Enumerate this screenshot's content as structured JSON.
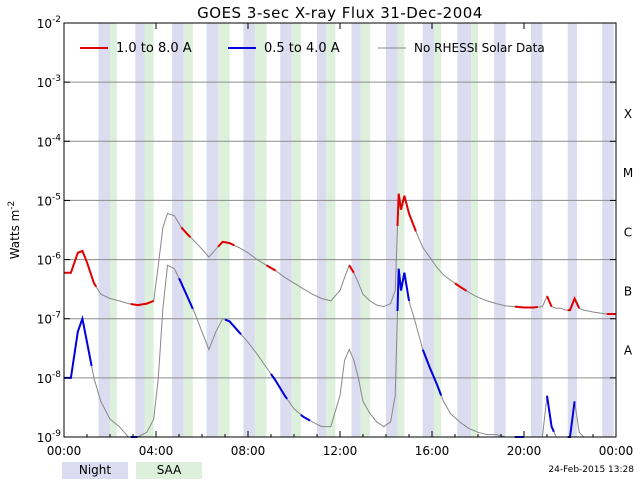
{
  "chart_data": {
    "type": "line",
    "title": "GOES 3-sec X-ray Flux    31-Dec-2004",
    "ylabel": "Watts m",
    "ylabel_sup": "-2",
    "xlabel": "",
    "x_unit": "hours UT",
    "xlim": [
      0,
      24
    ],
    "ylim": [
      1e-09,
      0.01
    ],
    "yscale": "log",
    "x_ticks": [
      "00:00",
      "04:00",
      "08:00",
      "12:00",
      "16:00",
      "20:00",
      "00:00"
    ],
    "y_ticks": [
      {
        "base": "10",
        "exp": "-9"
      },
      {
        "base": "10",
        "exp": "-8"
      },
      {
        "base": "10",
        "exp": "-7"
      },
      {
        "base": "10",
        "exp": "-6"
      },
      {
        "base": "10",
        "exp": "-5"
      },
      {
        "base": "10",
        "exp": "-4"
      },
      {
        "base": "10",
        "exp": "-3"
      },
      {
        "base": "10",
        "exp": "-2"
      }
    ],
    "flare_classes": [
      {
        "label": "A",
        "value": 1e-08
      },
      {
        "label": "B",
        "value": 1e-07
      },
      {
        "label": "C",
        "value": 1e-06
      },
      {
        "label": "M",
        "value": 1e-05
      },
      {
        "label": "X",
        "value": 0.0001
      }
    ],
    "legend": [
      {
        "name": "1.0 to 8.0 A",
        "color": "#e00000"
      },
      {
        "name": "0.5 to 4.0 A",
        "color": "#0000e0"
      },
      {
        "name": "No RHESSI Solar Data",
        "color": "#888888"
      }
    ],
    "night_intervals": [
      [
        1.5,
        2.0
      ],
      [
        3.1,
        3.5
      ],
      [
        4.7,
        5.2
      ],
      [
        6.2,
        6.7
      ],
      [
        7.8,
        8.3
      ],
      [
        9.4,
        9.9
      ],
      [
        11.0,
        11.4
      ],
      [
        12.5,
        12.9
      ],
      [
        14.0,
        14.5
      ],
      [
        15.6,
        16.1
      ],
      [
        17.1,
        17.7
      ],
      [
        18.7,
        19.2
      ],
      [
        20.3,
        20.8
      ],
      [
        21.9,
        22.3
      ],
      [
        23.4,
        23.9
      ]
    ],
    "saa_intervals": [
      [
        2.0,
        2.3
      ],
      [
        3.5,
        3.9
      ],
      [
        5.2,
        5.6
      ],
      [
        6.7,
        7.2
      ],
      [
        8.3,
        8.8
      ],
      [
        9.9,
        10.3
      ],
      [
        11.4,
        11.8
      ],
      [
        12.9,
        13.3
      ],
      [
        14.5,
        14.8
      ],
      [
        16.1,
        16.4
      ],
      [
        17.7,
        18.0
      ]
    ],
    "series": [
      {
        "name": "1.0 to 8.0 A",
        "x": [
          0.0,
          0.3,
          0.6,
          0.8,
          1.0,
          1.3,
          1.6,
          2.0,
          2.4,
          2.8,
          3.2,
          3.6,
          3.9,
          4.1,
          4.3,
          4.5,
          4.8,
          5.1,
          5.4,
          5.7,
          6.0,
          6.3,
          6.6,
          6.9,
          7.2,
          7.6,
          8.0,
          8.4,
          8.8,
          9.2,
          9.6,
          10.0,
          10.4,
          10.8,
          11.2,
          11.6,
          12.0,
          12.2,
          12.4,
          12.6,
          12.8,
          13.0,
          13.3,
          13.6,
          13.9,
          14.2,
          14.4,
          14.55,
          14.65,
          14.8,
          15.0,
          15.3,
          15.6,
          15.9,
          16.2,
          16.5,
          16.8,
          17.2,
          17.6,
          18.0,
          18.4,
          18.8,
          19.2,
          19.6,
          20.0,
          20.4,
          20.8,
          21.0,
          21.2,
          21.4,
          21.6,
          21.8,
          22.0,
          22.2,
          22.4,
          22.6,
          22.8,
          23.0,
          23.3,
          23.6,
          24.0
        ],
        "values": [
          6e-07,
          6e-07,
          1.3e-06,
          1.4e-06,
          9e-07,
          4e-07,
          2.6e-07,
          2.2e-07,
          2e-07,
          1.8e-07,
          1.7e-07,
          1.8e-07,
          2e-07,
          8e-07,
          3.5e-06,
          6e-06,
          5.5e-06,
          3.5e-06,
          2.6e-06,
          2e-06,
          1.5e-06,
          1.1e-06,
          1.5e-06,
          2e-06,
          1.9e-06,
          1.6e-06,
          1.3e-06,
          1e-06,
          8e-07,
          6.5e-07,
          5e-07,
          4e-07,
          3.2e-07,
          2.6e-07,
          2.2e-07,
          2e-07,
          3e-07,
          5e-07,
          8e-07,
          6e-07,
          4e-07,
          2.6e-07,
          2e-07,
          1.7e-07,
          1.6e-07,
          1.8e-07,
          3e-07,
          1.3e-05,
          7e-06,
          1.2e-05,
          6e-06,
          3e-06,
          1.6e-06,
          1.1e-06,
          7.5e-07,
          5.5e-07,
          4.5e-07,
          3.5e-07,
          2.8e-07,
          2.3e-07,
          2e-07,
          1.8e-07,
          1.65e-07,
          1.6e-07,
          1.55e-07,
          1.55e-07,
          1.6e-07,
          2.4e-07,
          1.6e-07,
          1.5e-07,
          1.5e-07,
          1.4e-07,
          1.4e-07,
          2.2e-07,
          1.5e-07,
          1.4e-07,
          1.35e-07,
          1.3e-07,
          1.25e-07,
          1.2e-07,
          1.2e-07
        ]
      },
      {
        "name": "0.5 to 4.0 A",
        "x": [
          0.0,
          0.3,
          0.6,
          0.8,
          1.0,
          1.3,
          1.6,
          2.0,
          2.4,
          2.8,
          3.2,
          3.6,
          3.9,
          4.1,
          4.3,
          4.5,
          4.8,
          5.1,
          5.4,
          5.7,
          6.0,
          6.3,
          6.6,
          6.9,
          7.2,
          7.6,
          8.0,
          8.4,
          8.8,
          9.2,
          9.6,
          10.0,
          10.4,
          10.8,
          11.2,
          11.6,
          12.0,
          12.2,
          12.4,
          12.6,
          12.8,
          13.0,
          13.3,
          13.6,
          13.9,
          14.2,
          14.4,
          14.55,
          14.65,
          14.8,
          15.0,
          15.3,
          15.6,
          15.9,
          16.2,
          16.5,
          16.8,
          17.2,
          17.6,
          18.0,
          18.4,
          18.8,
          19.2,
          19.6,
          20.0,
          20.4,
          20.8,
          21.0,
          21.2,
          21.4,
          21.6,
          21.8,
          22.0,
          22.2,
          22.4,
          22.6,
          22.8,
          23.0,
          23.3,
          23.6,
          24.0
        ],
        "values": [
          1e-08,
          1e-08,
          6e-08,
          1e-07,
          4e-08,
          1e-08,
          4e-09,
          2e-09,
          1.5e-09,
          1e-09,
          1e-09,
          1.2e-09,
          2e-09,
          1e-08,
          1.5e-07,
          8e-07,
          7e-07,
          4e-07,
          2.2e-07,
          1.2e-07,
          6e-08,
          3e-08,
          6e-08,
          1e-07,
          9e-08,
          6e-08,
          4e-08,
          2.5e-08,
          1.5e-08,
          9e-09,
          5e-09,
          3e-09,
          2.2e-09,
          1.8e-09,
          1.5e-09,
          1.5e-09,
          5e-09,
          2e-08,
          3e-08,
          2e-08,
          1e-08,
          4e-09,
          2.5e-09,
          1.8e-09,
          1.5e-09,
          1.8e-09,
          5e-09,
          7e-07,
          3e-07,
          6e-07,
          2e-07,
          8e-08,
          3e-08,
          1.5e-08,
          8e-09,
          4e-09,
          2.5e-09,
          1.8e-09,
          1.4e-09,
          1.2e-09,
          1.1e-09,
          1.1e-09,
          1e-09,
          1e-09,
          1e-09,
          1e-09,
          1e-09,
          5e-09,
          1.5e-09,
          1e-09,
          1e-09,
          1e-09,
          1e-09,
          4e-09,
          1.2e-09,
          1e-09,
          1e-09,
          1e-09,
          1e-09,
          1e-09,
          1e-09
        ]
      }
    ],
    "red_intervals": [
      [
        0.0,
        1.4
      ],
      [
        2.9,
        3.9
      ],
      [
        5.1,
        5.5
      ],
      [
        6.7,
        7.4
      ],
      [
        8.8,
        9.2
      ],
      [
        12.4,
        12.6
      ],
      [
        14.5,
        15.3
      ],
      [
        17.0,
        17.5
      ],
      [
        19.6,
        20.6
      ],
      [
        21.0,
        21.2
      ],
      [
        21.9,
        22.4
      ],
      [
        23.6,
        24.0
      ]
    ],
    "blue_intervals": [
      [
        0.0,
        1.2
      ],
      [
        2.9,
        3.2
      ],
      [
        5.0,
        5.6
      ],
      [
        7.0,
        7.7
      ],
      [
        9.0,
        9.7
      ],
      [
        10.3,
        10.7
      ],
      [
        14.5,
        15.0
      ],
      [
        15.6,
        16.4
      ],
      [
        19.6,
        20.0
      ],
      [
        21.0,
        21.3
      ],
      [
        21.9,
        22.2
      ]
    ]
  },
  "footer": {
    "night_label": "Night",
    "saa_label": "SAA",
    "timestamp": "24-Feb-2015 13:28"
  },
  "colors": {
    "night": "#dcdcf0",
    "saa": "#dcf0dc",
    "grid": "#8c8c8c",
    "gray_line": "#888888"
  }
}
